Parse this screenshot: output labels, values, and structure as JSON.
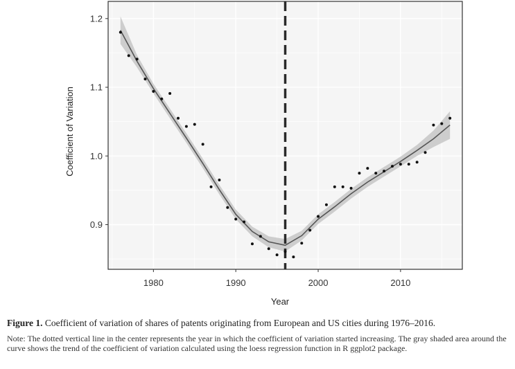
{
  "chart_data": {
    "type": "scatter",
    "xlabel": "Year",
    "ylabel": "Coefficient of Variation",
    "xlim": [
      1974.5,
      2017.5
    ],
    "ylim": [
      0.835,
      1.225
    ],
    "xticks": [
      1980,
      1990,
      2000,
      2010
    ],
    "xtick_labels": [
      "1980",
      "1990",
      "2000",
      "2010"
    ],
    "yticks": [
      0.9,
      1.0,
      1.1,
      1.2
    ],
    "ytick_labels": [
      "0.9",
      "1.0",
      "1.1",
      "1.2"
    ],
    "grid": true,
    "vertical_line": {
      "x": 1996,
      "style": "dashed"
    },
    "points": {
      "x": [
        1976,
        1977,
        1978,
        1979,
        1980,
        1981,
        1982,
        1983,
        1984,
        1985,
        1986,
        1987,
        1988,
        1989,
        1990,
        1991,
        1992,
        1993,
        1994,
        1995,
        1996,
        1997,
        1998,
        1999,
        2000,
        2001,
        2002,
        2003,
        2004,
        2005,
        2006,
        2007,
        2008,
        2009,
        2010,
        2011,
        2012,
        2013,
        2014,
        2015,
        2016
      ],
      "y": [
        1.18,
        1.146,
        1.141,
        1.112,
        1.094,
        1.083,
        1.091,
        1.055,
        1.043,
        1.046,
        1.017,
        0.955,
        0.965,
        0.925,
        0.908,
        0.904,
        0.872,
        0.883,
        0.865,
        0.856,
        0.861,
        0.853,
        0.873,
        0.892,
        0.912,
        0.929,
        0.955,
        0.955,
        0.953,
        0.975,
        0.982,
        0.975,
        0.978,
        0.985,
        0.988,
        0.988,
        0.991,
        1.005,
        1.045,
        1.047,
        1.055
      ]
    },
    "loess_fit": {
      "x": [
        1976,
        1978,
        1980,
        1982,
        1984,
        1986,
        1988,
        1990,
        1992,
        1994,
        1996,
        1998,
        2000,
        2002,
        2004,
        2006,
        2008,
        2010,
        2012,
        2014,
        2016
      ],
      "y": [
        1.183,
        1.138,
        1.098,
        1.062,
        1.026,
        0.989,
        0.951,
        0.915,
        0.89,
        0.875,
        0.87,
        0.884,
        0.908,
        0.926,
        0.945,
        0.962,
        0.977,
        0.992,
        1.008,
        1.025,
        1.045
      ],
      "ci_half_width": [
        0.02,
        0.009,
        0.007,
        0.007,
        0.007,
        0.007,
        0.007,
        0.007,
        0.007,
        0.008,
        0.009,
        0.007,
        0.007,
        0.007,
        0.007,
        0.007,
        0.007,
        0.007,
        0.008,
        0.012,
        0.02
      ]
    },
    "colors": {
      "panel_background": "#f5f5f5",
      "grid": "#ffffff",
      "points": "#111111",
      "line": "#555555",
      "ribbon": "#c6c6c6",
      "vline": "#2a2a2a",
      "frame": "#333333"
    }
  },
  "caption": {
    "label": "Figure 1.",
    "text": " Coefficient of variation of shares of patents originating from European and US cities during 1976–2016.",
    "note": "Note: The dotted vertical line in the center represents the year in which the coefficient of variation started increasing. The gray shaded area around the curve shows the trend of the coefficient of variation calculated using the loess regression function in R ggplot2 package."
  }
}
